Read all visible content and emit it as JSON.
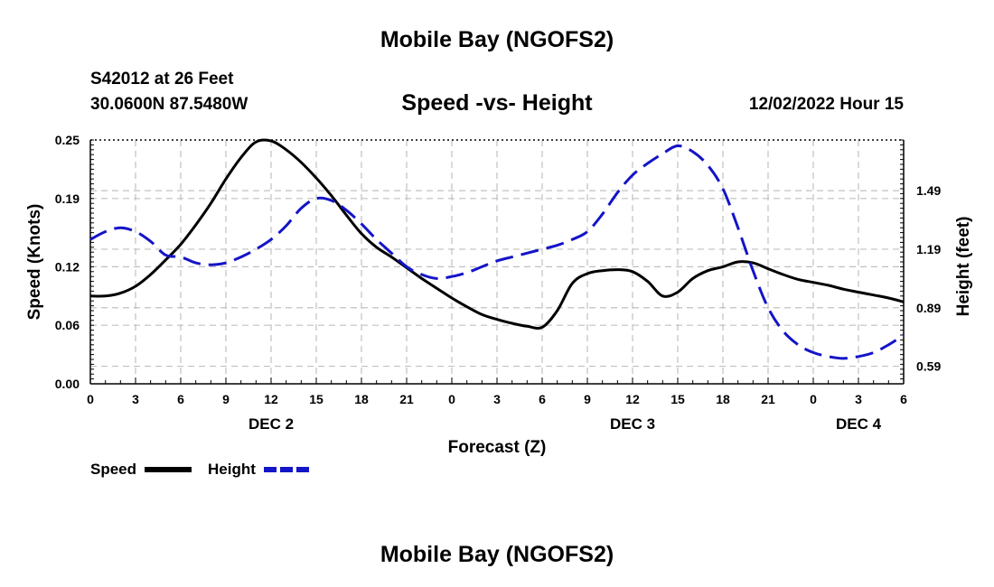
{
  "header": {
    "title": "Mobile Bay (NGOFS2)",
    "station": "S42012 at 26 Feet",
    "coords": "30.0600N  87.5480W",
    "subtitle": "Speed -vs- Height",
    "timestamp": "12/02/2022 Hour 15"
  },
  "footer": {
    "title": "Mobile Bay (NGOFS2)"
  },
  "chart_data": {
    "type": "line",
    "title": "Speed -vs- Height",
    "xlabel": "Forecast (Z)",
    "ylabel_left": "Speed (Knots)",
    "ylabel_right": "Height (feet)",
    "x_range_hours": [
      0,
      54
    ],
    "x_tick_hours": [
      0,
      3,
      6,
      9,
      12,
      15,
      18,
      21,
      24,
      27,
      30,
      33,
      36,
      39,
      42,
      45,
      48,
      51,
      54
    ],
    "x_tick_labels": [
      "0",
      "3",
      "6",
      "9",
      "12",
      "15",
      "18",
      "21",
      "0",
      "3",
      "6",
      "9",
      "12",
      "15",
      "18",
      "21",
      "0",
      "3",
      "6"
    ],
    "date_labels": [
      {
        "hour": 12,
        "label": "DEC 2"
      },
      {
        "hour": 36,
        "label": "DEC 3"
      },
      {
        "hour": 51,
        "label": "DEC 4"
      }
    ],
    "left_axis": {
      "ylim": [
        0,
        0.25
      ],
      "ticks": [
        0.0,
        0.06,
        0.12,
        0.19,
        0.25
      ],
      "tick_labels": [
        "0.00",
        "0.06",
        "0.12",
        "0.19",
        "0.25"
      ]
    },
    "right_axis": {
      "ylim": [
        0.5,
        1.75
      ],
      "ticks": [
        0.59,
        0.89,
        1.19,
        1.49
      ],
      "tick_labels": [
        "0.59",
        "0.89",
        "1.19",
        "1.49"
      ]
    },
    "grid": true,
    "legend_placement": "bottom-left",
    "series": [
      {
        "name": "Speed",
        "axis": "left",
        "color": "#000000",
        "style": "solid",
        "x": [
          0,
          1,
          2,
          3,
          4,
          5,
          6,
          7,
          8,
          9,
          10,
          11,
          12,
          13,
          14,
          15,
          16,
          17,
          18,
          19,
          20,
          21,
          22,
          23,
          24,
          25,
          26,
          27,
          28,
          29,
          30,
          31,
          32,
          33,
          34,
          35,
          36,
          37,
          38,
          39,
          40,
          41,
          42,
          43,
          44,
          45,
          46,
          47,
          48,
          49,
          50,
          51,
          52,
          53,
          54
        ],
        "values": [
          0.09,
          0.09,
          0.093,
          0.1,
          0.112,
          0.127,
          0.143,
          0.163,
          0.185,
          0.21,
          0.232,
          0.248,
          0.249,
          0.24,
          0.227,
          0.211,
          0.193,
          0.173,
          0.154,
          0.14,
          0.13,
          0.119,
          0.108,
          0.098,
          0.088,
          0.079,
          0.071,
          0.066,
          0.062,
          0.059,
          0.058,
          0.075,
          0.103,
          0.113,
          0.116,
          0.117,
          0.115,
          0.105,
          0.09,
          0.094,
          0.108,
          0.116,
          0.12,
          0.125,
          0.124,
          0.118,
          0.112,
          0.107,
          0.104,
          0.101,
          0.097,
          0.094,
          0.091,
          0.088,
          0.084
        ]
      },
      {
        "name": "Height",
        "axis": "right",
        "color": "#1414c8",
        "style": "dashed",
        "x": [
          0,
          1,
          2,
          3,
          4,
          5,
          6,
          7,
          8,
          9,
          10,
          11,
          12,
          13,
          14,
          15,
          16,
          17,
          18,
          19,
          20,
          21,
          22,
          23,
          24,
          25,
          26,
          27,
          28,
          29,
          30,
          31,
          32,
          33,
          34,
          35,
          36,
          37,
          38,
          39,
          40,
          41,
          42,
          43,
          44,
          45,
          46,
          47,
          48,
          49,
          50,
          51,
          52,
          53,
          54
        ],
        "values": [
          1.24,
          1.28,
          1.3,
          1.28,
          1.23,
          1.16,
          1.15,
          1.12,
          1.11,
          1.12,
          1.15,
          1.19,
          1.24,
          1.31,
          1.4,
          1.45,
          1.44,
          1.39,
          1.32,
          1.24,
          1.17,
          1.1,
          1.06,
          1.04,
          1.05,
          1.07,
          1.1,
          1.13,
          1.15,
          1.17,
          1.19,
          1.21,
          1.24,
          1.28,
          1.37,
          1.48,
          1.57,
          1.63,
          1.68,
          1.72,
          1.69,
          1.62,
          1.5,
          1.3,
          1.08,
          0.89,
          0.77,
          0.7,
          0.66,
          0.64,
          0.63,
          0.64,
          0.66,
          0.7,
          0.75
        ]
      }
    ]
  }
}
